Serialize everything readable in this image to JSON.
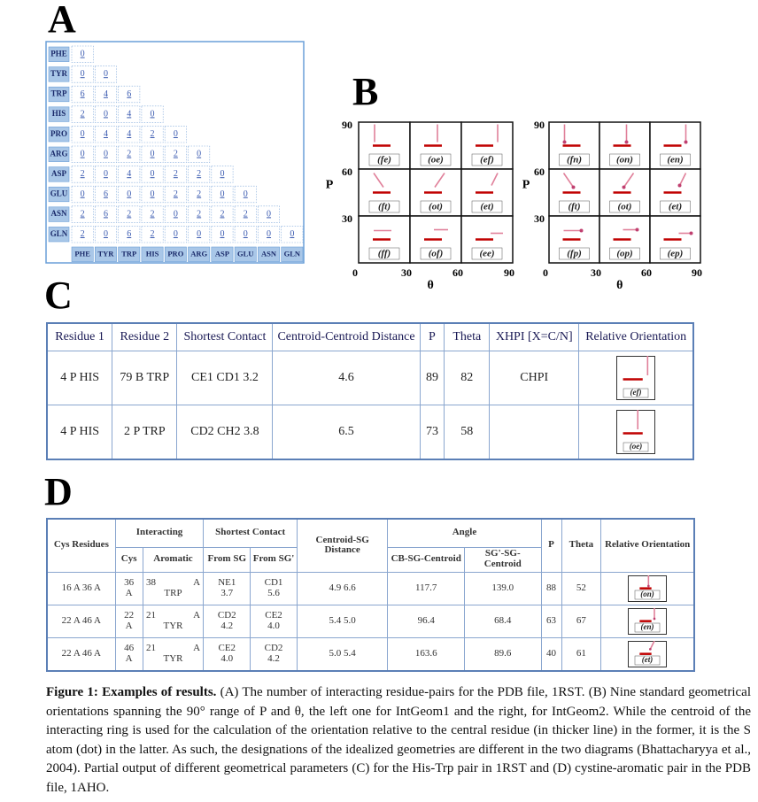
{
  "panel_a": {
    "label": "A",
    "residues": [
      "PHE",
      "TYR",
      "TRP",
      "HIS",
      "PRO",
      "ARG",
      "ASP",
      "GLU",
      "ASN",
      "GLN"
    ],
    "rows": [
      [
        "0"
      ],
      [
        "0",
        "0"
      ],
      [
        "6",
        "4",
        "6"
      ],
      [
        "2",
        "0",
        "4",
        "0"
      ],
      [
        "0",
        "4",
        "4",
        "2",
        "0"
      ],
      [
        "0",
        "0",
        "2",
        "0",
        "2",
        "0"
      ],
      [
        "2",
        "0",
        "4",
        "0",
        "2",
        "2",
        "0"
      ],
      [
        "0",
        "6",
        "0",
        "0",
        "2",
        "2",
        "0",
        "0"
      ],
      [
        "2",
        "6",
        "2",
        "2",
        "0",
        "2",
        "2",
        "2",
        "0"
      ],
      [
        "2",
        "0",
        "6",
        "2",
        "0",
        "0",
        "0",
        "0",
        "0",
        "0"
      ]
    ]
  },
  "panel_b": {
    "label": "B",
    "y_label": "P",
    "x_label": "θ",
    "y_ticks": [
      "90",
      "60",
      "30"
    ],
    "x_ticks": [
      "0",
      "30",
      "60",
      "90"
    ],
    "left": [
      [
        "(fe)",
        "(oe)",
        "(ef)"
      ],
      [
        "(ft)",
        "(ot)",
        "(et)"
      ],
      [
        "(ff)",
        "(of)",
        "(ee)"
      ]
    ],
    "right": [
      [
        "(fn)",
        "(on)",
        "(en)"
      ],
      [
        "(ft)",
        "(ot)",
        "(et)"
      ],
      [
        "(fp)",
        "(op)",
        "(ep)"
      ]
    ]
  },
  "panel_c": {
    "label": "C",
    "headers": [
      "Residue 1",
      "Residue 2",
      "Shortest Contact",
      "Centroid-Centroid Distance",
      "P",
      "Theta",
      "XHPI [X=C/N]",
      "Relative Orientation"
    ],
    "rows": [
      {
        "cells": [
          "4 P HIS",
          "79 B TRP",
          "CE1  CD1  3.2",
          "4.6",
          "89",
          "82"
        ],
        "xhpi": "CHPI",
        "orientation": "(ef)"
      },
      {
        "cells": [
          "4 P HIS",
          "2 P TRP",
          "CD2  CH2  3.8",
          "6.5",
          "73",
          "58"
        ],
        "orientation": "(oe)"
      }
    ]
  },
  "panel_d": {
    "label": "D",
    "headers": {
      "cys_residues": "Cys Residues",
      "interacting": "Interacting",
      "cys": "Cys",
      "aromatic": "Aromatic",
      "shortest_contact": "Shortest Contact",
      "from_sg": "From SG",
      "from_sg2": "From SG'",
      "centroid_sg": "Centroid-SG Distance",
      "angle": "Angle",
      "cb_sg": "CB-SG-Centroid",
      "sg_sg": "SG'-SG-Centroid",
      "p": "P",
      "theta": "Theta",
      "relative": "Relative Orientation"
    },
    "rows": [
      {
        "cells": [
          "16 A   36 A",
          "36 A",
          "38 A TRP",
          "NE1 3.7",
          "CD1 5.6",
          "4.9  6.6",
          "117.7",
          "139.0",
          "88",
          "52"
        ],
        "orientation": "(on)"
      },
      {
        "cells": [
          "22 A   46 A",
          "22 A",
          "21 A TYR",
          "CD2 4.2",
          "CE2 4.0",
          "5.4  5.0",
          "96.4",
          "68.4",
          "63",
          "67"
        ],
        "orientation": "(en)"
      },
      {
        "cells": [
          "22 A   46 A",
          "46 A",
          "21 A TYR",
          "CE2 4.0",
          "CD2 4.2",
          "5.0  5.4",
          "163.6",
          "89.6",
          "40",
          "61"
        ],
        "orientation": "(et)"
      }
    ]
  },
  "caption": {
    "label": "Figure 1:",
    "heading": "Examples of results.",
    "text": "(A) The number of interacting residue-pairs for the PDB file, 1RST. (B) Nine standard geometrical orientations spanning the 90° range of P and θ, the left one for IntGeom1 and the right, for IntGeom2. While the centroid of the interacting ring is used for the calculation of the orientation relative to the central residue (in thicker line) in the former, it is the S atom (dot) in the latter. As such, the designations of the idealized geometries are different in the two diagrams (Bhattacharyya et al., 2004). Partial output of different geometrical parameters (C) for the His-Trp pair in 1RST and (D) cystine-aromatic pair in the PDB file, 1AHO."
  }
}
